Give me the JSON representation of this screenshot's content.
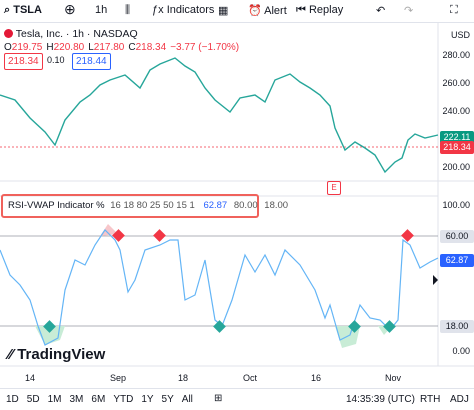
{
  "toolbar": {
    "symbol": "TSLA",
    "interval": "1h",
    "indicators": "Indicators",
    "alert": "Alert",
    "replay": "Replay"
  },
  "legend": {
    "name": "Tesla, Inc. · 1h · NASDAQ",
    "ohlc": [
      {
        "label": "O",
        "value": "219.75"
      },
      {
        "label": "H",
        "value": "220.80"
      },
      {
        "label": "L",
        "value": "217.80"
      },
      {
        "label": "C",
        "value": "218.34"
      }
    ],
    "change": "−3.77 (−1.70%)"
  },
  "price_boxes": [
    "218.34",
    "0.10",
    "218.44"
  ],
  "price_axis": {
    "currency": "USD",
    "ticks": [
      "280.00",
      "260.00",
      "240.00",
      "200.00"
    ],
    "last_close": "222.11",
    "current": "218.34"
  },
  "earnings_marker": "E",
  "indicator": {
    "name": "RSI-VWAP Indicator %",
    "params": "16 18 80 25 50 15 1",
    "values": [
      "62.87",
      "80.00",
      "18.00"
    ],
    "axis_ticks": [
      "100.00",
      "60.00",
      "18.00",
      "0.00"
    ],
    "current": "62.87"
  },
  "logo": "TradingView",
  "time_axis": [
    "14",
    "Sep",
    "18",
    "Oct",
    "16",
    "Nov"
  ],
  "ranges": [
    "1D",
    "5D",
    "1M",
    "3M",
    "6M",
    "YTD",
    "1Y",
    "5Y",
    "All"
  ],
  "status": {
    "time": "14:35:39 (UTC)",
    "session": "RTH",
    "adjust": "ADJ"
  }
}
